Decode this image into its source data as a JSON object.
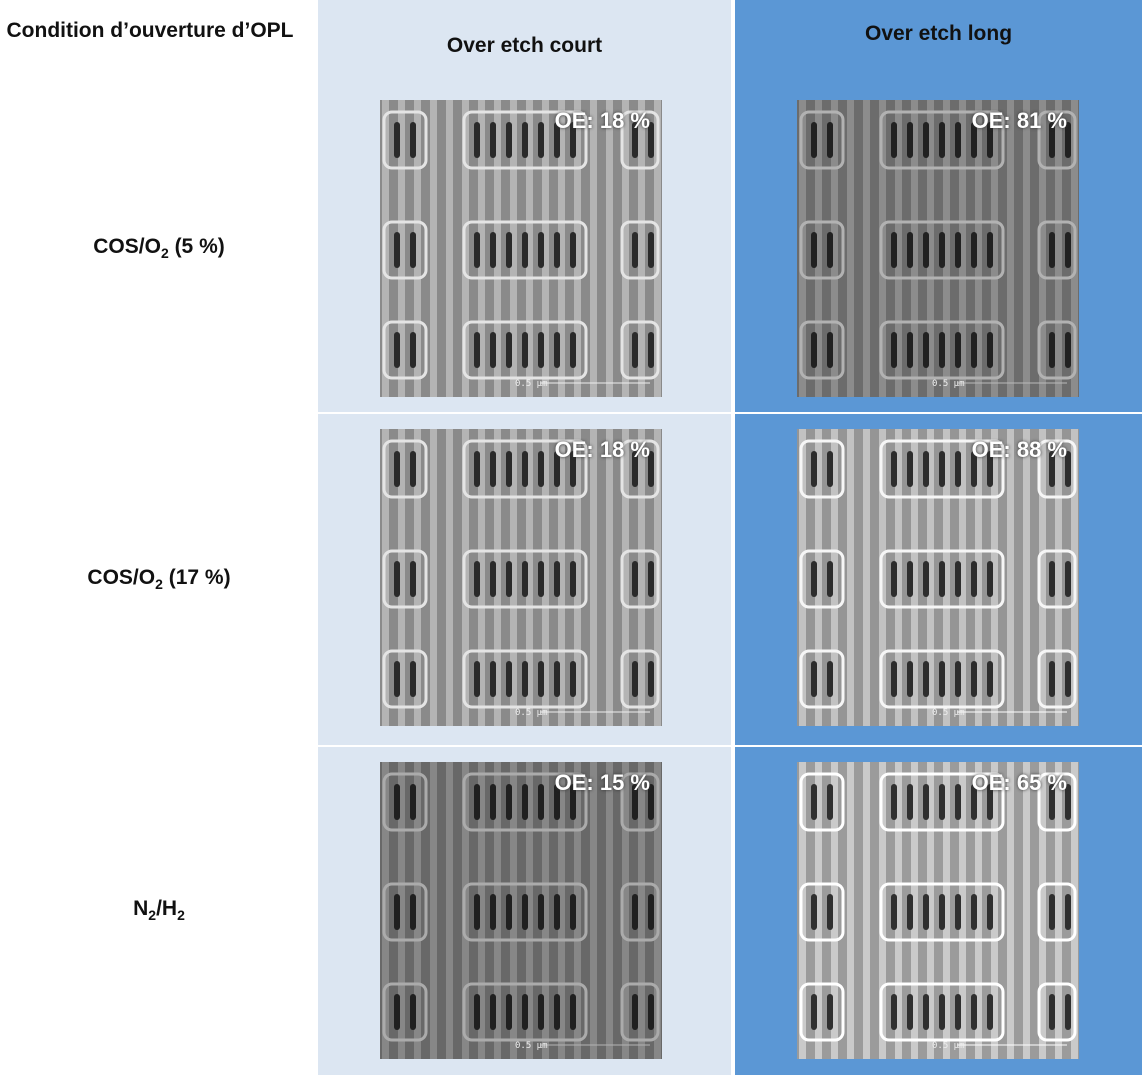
{
  "header": {
    "corner": "Condition d’ouverture d’OPL",
    "columns": [
      "Over etch court",
      "Over etch long"
    ]
  },
  "rows": [
    {
      "label": [
        {
          "text": "COS/O"
        },
        {
          "text": "2",
          "sub": true
        },
        {
          "text": " (5 %)"
        }
      ],
      "cells": [
        {
          "oe": "OE: 18 %",
          "scale": "0.5 µm"
        },
        {
          "oe": "OE: 81 %",
          "scale": "0.5 µm"
        }
      ]
    },
    {
      "label": [
        {
          "text": "COS/O"
        },
        {
          "text": "2",
          "sub": true
        },
        {
          "text": " (17 %)"
        }
      ],
      "cells": [
        {
          "oe": "OE: 18 %",
          "scale": "0.5 µm"
        },
        {
          "oe": "OE: 88 %",
          "scale": "0.5 µm"
        }
      ]
    },
    {
      "label": [
        {
          "text": "N"
        },
        {
          "text": "2",
          "sub": true
        },
        {
          "text": "/H"
        },
        {
          "text": "2",
          "sub": true
        }
      ],
      "cells": [
        {
          "oe": "OE: 15 %",
          "scale": "0.5 µm"
        },
        {
          "oe": "OE: 65 %",
          "scale": "0.5 µm"
        }
      ]
    }
  ]
}
